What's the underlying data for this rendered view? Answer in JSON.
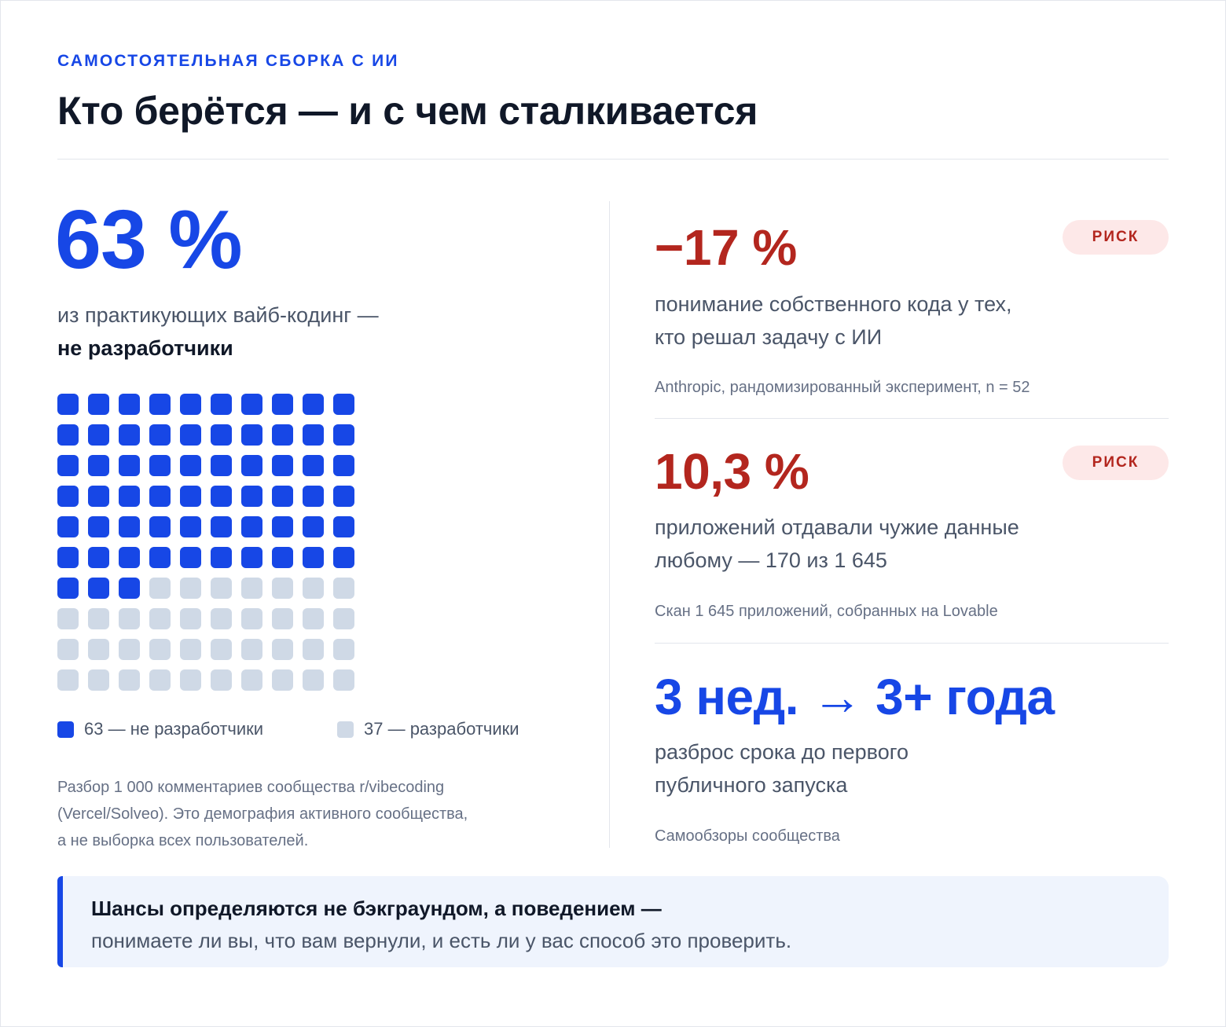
{
  "header": {
    "eyebrow": "САМОСТОЯТЕЛЬНАЯ СБОРКА С ИИ",
    "title": "Кто берётся — и с чем сталкивается"
  },
  "left": {
    "big_value": "63 %",
    "lead_line": "из практикующих вайб-кодинг —",
    "lead_bold": "не разработчики",
    "waffle": {
      "total": 100,
      "filled": 63,
      "filled_color": "#1747e6",
      "empty_color": "#cfd9e6"
    },
    "legend": [
      {
        "label": "63 — не разработчики",
        "color": "#1747e6"
      },
      {
        "label": "37 — разработчики",
        "color": "#cfd9e6"
      }
    ],
    "footnote": [
      "Разбор 1 000 комментариев сообщества r/vibecoding",
      "(Vercel/Solveo). Это демография активного сообщества,",
      "а не выборка всех пользователей."
    ]
  },
  "stats": [
    {
      "value": "−17 %",
      "badge": "РИСК",
      "desc": [
        "понимание собственного кода у тех,",
        "кто решал задачу с ИИ"
      ],
      "source": "Anthropic, рандомизированный эксперимент, n = 52",
      "color": "#b3261e"
    },
    {
      "value": "10,3 %",
      "badge": "РИСК",
      "desc": [
        "приложений отдавали чужие данные",
        "любому — 170 из 1 645"
      ],
      "source": "Скан 1 645 приложений, собранных на Lovable",
      "color": "#b3261e"
    },
    {
      "value": "3 нед. → 3+ года",
      "desc": [
        "разброс срока до первого",
        "публичного запуска"
      ],
      "source": "Самообзоры сообщества",
      "color": "#1747e6"
    }
  ],
  "callout": {
    "bold": "Шансы определяются не бэкграундом, а поведением —",
    "text": "понимаете ли вы, что вам вернули, и есть ли у вас способ это проверить."
  }
}
